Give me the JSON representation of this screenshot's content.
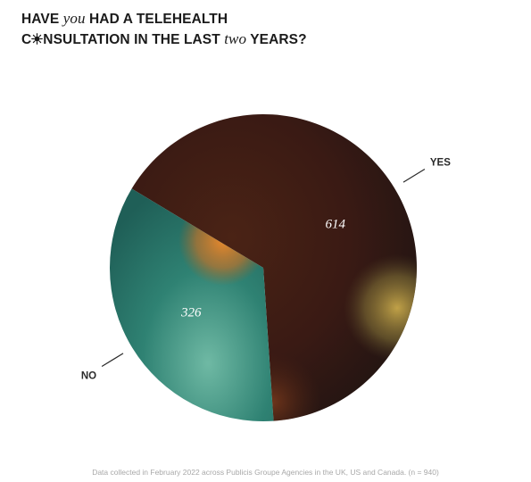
{
  "title": {
    "line1_a": "HAVE ",
    "line1_b": "you",
    "line1_c": " HAD A TELEHEALTH",
    "line2_a": "C",
    "line2_b": "NSULTATION IN THE LAST ",
    "line2_c": "two",
    "line2_d": " YEARS?"
  },
  "chart_data": {
    "type": "pie",
    "categories": [
      "YES",
      "NO"
    ],
    "values": [
      614,
      326
    ],
    "value_labels": [
      "614",
      "326"
    ],
    "colors": [
      "#3a1d14",
      "#2c7a6c"
    ]
  },
  "footnote": "Data collected in February 2022 across Publicis Groupe Agencies in the UK, US and Canada. (n = 940)"
}
